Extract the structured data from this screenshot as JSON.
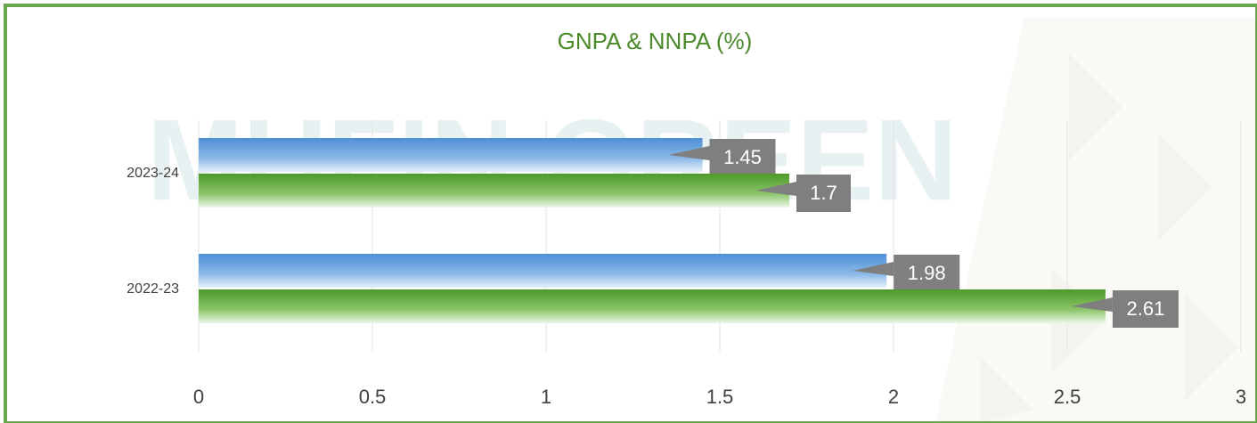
{
  "chart_data": {
    "type": "hbar",
    "title": "GNPA & NNPA (%)",
    "watermark": "MUFIN GREEN",
    "categories": [
      "2023-24",
      "2022-23"
    ],
    "series": [
      {
        "color": "#5b9bd5",
        "values": [
          1.45,
          1.98
        ]
      },
      {
        "color": "#5aa02c",
        "values": [
          1.7,
          2.61
        ]
      }
    ],
    "xlim": [
      0,
      3
    ],
    "xticks": [
      0,
      0.5,
      1,
      1.5,
      2,
      2.5,
      3
    ],
    "grid": true
  }
}
